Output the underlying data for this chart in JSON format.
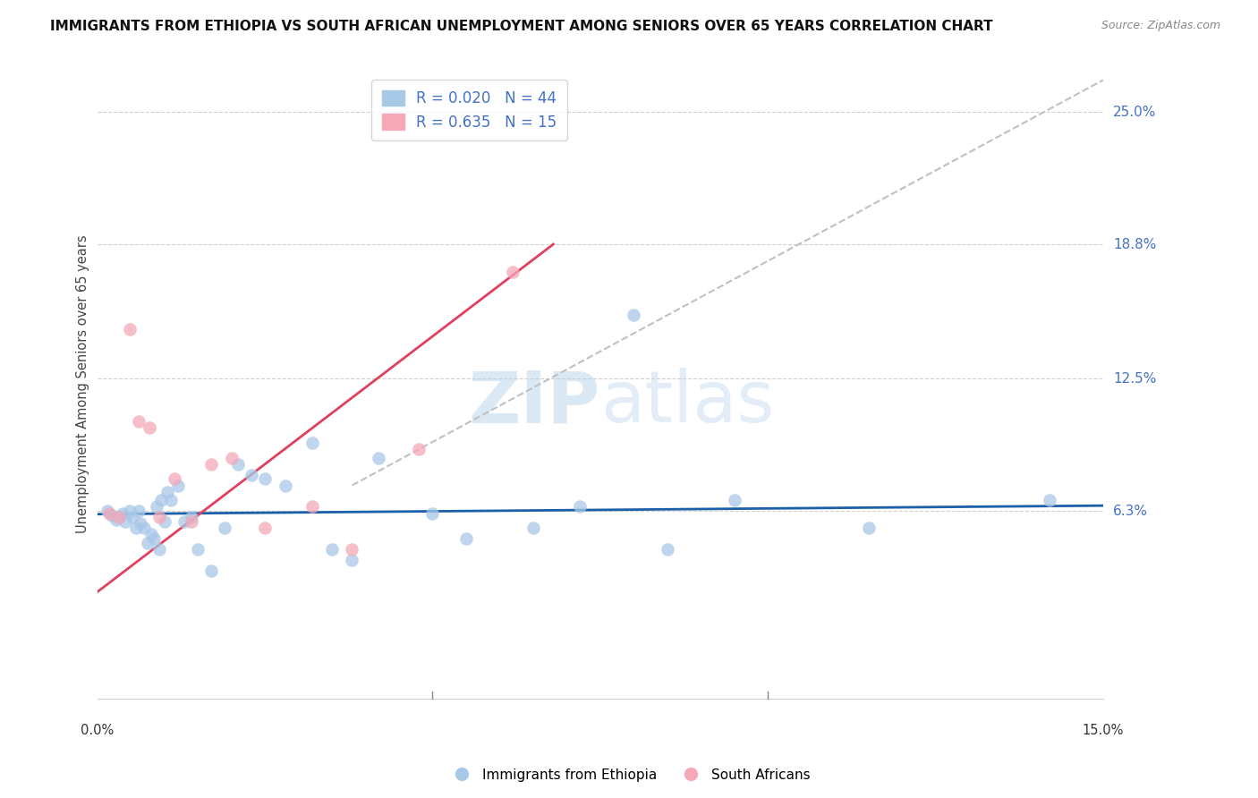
{
  "title": "IMMIGRANTS FROM ETHIOPIA VS SOUTH AFRICAN UNEMPLOYMENT AMONG SENIORS OVER 65 YEARS CORRELATION CHART",
  "source": "Source: ZipAtlas.com",
  "ylabel": "Unemployment Among Seniors over 65 years",
  "xlim": [
    0.0,
    15.0
  ],
  "ylim": [
    -2.5,
    27.0
  ],
  "yticks": [
    6.3,
    12.5,
    18.8,
    25.0
  ],
  "ytick_labels": [
    "6.3%",
    "12.5%",
    "18.8%",
    "25.0%"
  ],
  "legend1_R": "0.020",
  "legend1_N": "44",
  "legend2_R": "0.635",
  "legend2_N": "15",
  "blue_color": "#a8c8e8",
  "pink_color": "#f4a8b8",
  "line_blue": "#1a5fa8",
  "line_pink": "#e04060",
  "line_gray": "#c0c0c0",
  "watermark_zip": "ZIP",
  "watermark_atlas": "atlas",
  "blue_points_x": [
    0.15,
    0.22,
    0.28,
    0.32,
    0.38,
    0.42,
    0.48,
    0.52,
    0.58,
    0.62,
    0.65,
    0.7,
    0.75,
    0.8,
    0.85,
    0.88,
    0.92,
    0.95,
    1.0,
    1.05,
    1.1,
    1.2,
    1.3,
    1.4,
    1.5,
    1.7,
    1.9,
    2.1,
    2.3,
    2.5,
    2.8,
    3.2,
    3.5,
    3.8,
    4.2,
    5.0,
    5.5,
    6.5,
    7.2,
    8.0,
    8.5,
    9.5,
    11.5,
    14.2
  ],
  "blue_points_y": [
    6.3,
    6.1,
    5.9,
    6.0,
    6.2,
    5.8,
    6.3,
    6.0,
    5.5,
    6.3,
    5.7,
    5.5,
    4.8,
    5.2,
    5.0,
    6.5,
    4.5,
    6.8,
    5.8,
    7.2,
    6.8,
    7.5,
    5.8,
    6.0,
    4.5,
    3.5,
    5.5,
    8.5,
    8.0,
    7.8,
    7.5,
    9.5,
    4.5,
    4.0,
    8.8,
    6.2,
    5.0,
    5.5,
    6.5,
    15.5,
    4.5,
    6.8,
    5.5,
    6.8
  ],
  "pink_points_x": [
    0.18,
    0.32,
    0.48,
    0.62,
    0.78,
    0.92,
    1.15,
    1.4,
    1.7,
    2.0,
    2.5,
    3.2,
    3.8,
    4.8,
    6.2
  ],
  "pink_points_y": [
    6.2,
    6.0,
    14.8,
    10.5,
    10.2,
    6.0,
    7.8,
    5.8,
    8.5,
    8.8,
    5.5,
    6.5,
    4.5,
    9.2,
    17.5
  ],
  "blue_trendline_x": [
    0.0,
    15.0
  ],
  "blue_trendline_y": [
    6.15,
    6.55
  ],
  "pink_trendline_x": [
    0.0,
    6.8
  ],
  "pink_trendline_y": [
    2.5,
    18.8
  ],
  "gray_trendline_x": [
    3.8,
    15.0
  ],
  "gray_trendline_y": [
    7.5,
    26.5
  ]
}
